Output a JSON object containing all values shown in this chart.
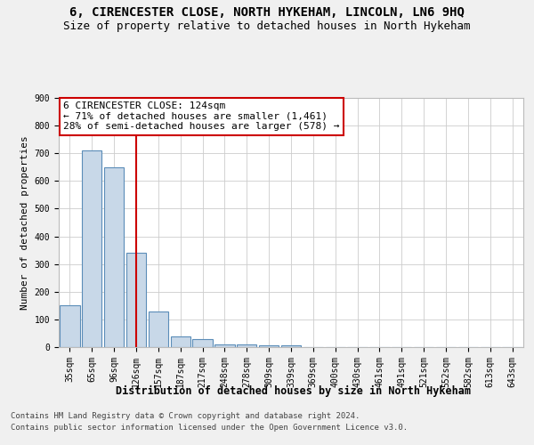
{
  "title": "6, CIRENCESTER CLOSE, NORTH HYKEHAM, LINCOLN, LN6 9HQ",
  "subtitle": "Size of property relative to detached houses in North Hykeham",
  "xlabel": "Distribution of detached houses by size in North Hykeham",
  "ylabel": "Number of detached properties",
  "categories": [
    "35sqm",
    "65sqm",
    "96sqm",
    "126sqm",
    "157sqm",
    "187sqm",
    "217sqm",
    "248sqm",
    "278sqm",
    "309sqm",
    "339sqm",
    "369sqm",
    "400sqm",
    "430sqm",
    "461sqm",
    "491sqm",
    "521sqm",
    "552sqm",
    "582sqm",
    "613sqm",
    "643sqm"
  ],
  "bar_heights": [
    150,
    710,
    650,
    340,
    130,
    40,
    30,
    10,
    10,
    5,
    5,
    0,
    0,
    0,
    0,
    0,
    0,
    0,
    0,
    0,
    0
  ],
  "bar_color": "#c8d8e8",
  "bar_edge_color": "#5b8db8",
  "red_line_x": 3,
  "annotation_line1": "6 CIRENCESTER CLOSE: 124sqm",
  "annotation_line2": "← 71% of detached houses are smaller (1,461)",
  "annotation_line3": "28% of semi-detached houses are larger (578) →",
  "annotation_box_color": "#ffffff",
  "annotation_border_color": "#cc0000",
  "ylim": [
    0,
    900
  ],
  "yticks": [
    0,
    100,
    200,
    300,
    400,
    500,
    600,
    700,
    800,
    900
  ],
  "red_line_color": "#cc0000",
  "footer_line1": "Contains HM Land Registry data © Crown copyright and database right 2024.",
  "footer_line2": "Contains public sector information licensed under the Open Government Licence v3.0.",
  "background_color": "#f0f0f0",
  "plot_background_color": "#ffffff",
  "grid_color": "#cccccc",
  "title_fontsize": 10,
  "subtitle_fontsize": 9,
  "annotation_fontsize": 8,
  "footer_fontsize": 6.5,
  "ylabel_fontsize": 8,
  "xlabel_fontsize": 8.5,
  "tick_fontsize": 7
}
